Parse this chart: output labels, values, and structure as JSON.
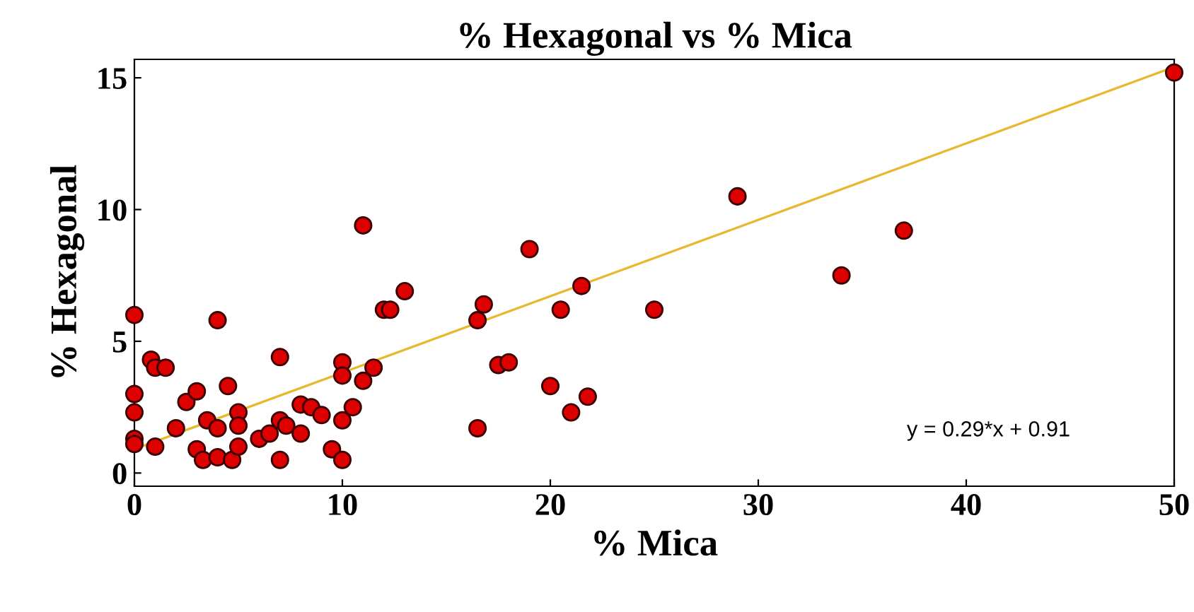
{
  "chart_data": {
    "type": "scatter",
    "title": "% Hexagonal vs % Mica",
    "xlabel": "% Mica",
    "ylabel": "% Hexagonal",
    "xlim": [
      0,
      50
    ],
    "ylim": [
      -0.5,
      15.7
    ],
    "xticks": [
      0,
      10,
      20,
      30,
      40,
      50
    ],
    "yticks": [
      0,
      5,
      10,
      15
    ],
    "grid": false,
    "legend": false,
    "marker": "circle",
    "annotations": [
      "y = 0.29*x + 0.91"
    ],
    "series": [
      {
        "color": "#dd0000",
        "x": [
          0,
          0,
          0,
          0,
          0,
          0.8,
          1,
          1.5,
          1,
          2,
          2.5,
          3,
          3,
          3.3,
          3.5,
          4,
          4,
          4,
          4.5,
          4.7,
          5,
          5,
          5,
          6,
          6.5,
          7,
          7,
          7,
          7.3,
          8,
          8,
          8.5,
          9,
          9.5,
          10,
          10,
          10,
          10,
          10.5,
          11,
          11,
          11.5,
          12,
          12.3,
          13,
          16.5,
          16.5,
          16.8,
          17.5,
          18,
          19,
          20,
          20.5,
          21,
          21.5,
          21.8,
          25,
          29,
          34,
          37,
          50
        ],
        "values": [
          6.0,
          3.0,
          2.3,
          1.3,
          1.1,
          4.3,
          4.0,
          4.0,
          1.0,
          1.7,
          2.7,
          3.1,
          0.9,
          0.5,
          2.0,
          5.8,
          1.7,
          0.6,
          3.3,
          0.5,
          2.3,
          1.8,
          1.0,
          1.3,
          1.5,
          4.4,
          2.0,
          0.5,
          1.8,
          2.6,
          1.5,
          2.5,
          2.2,
          0.9,
          4.2,
          3.7,
          2.0,
          0.5,
          2.5,
          9.4,
          3.5,
          4.0,
          6.2,
          6.2,
          6.9,
          1.7,
          5.8,
          6.4,
          4.1,
          4.2,
          8.5,
          3.3,
          6.2,
          2.3,
          7.1,
          2.9,
          6.2,
          10.5,
          7.5,
          9.2,
          15.2
        ]
      },
      {
        "type": "line",
        "color": "#e8b830",
        "marker": "none",
        "line_style": "solid",
        "x": [
          0,
          50
        ],
        "values": [
          0.91,
          15.41
        ]
      }
    ]
  }
}
